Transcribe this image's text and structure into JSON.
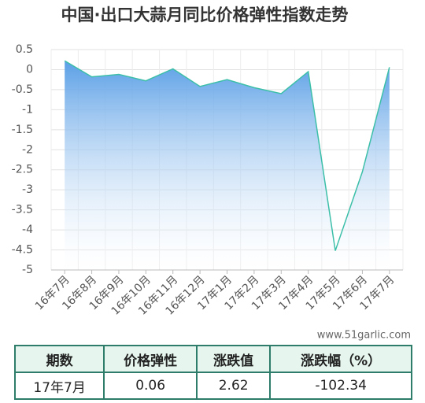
{
  "chart_data": {
    "type": "area",
    "title": "中国·出口大蒜月同比价格弹性指数走势",
    "categories": [
      "16年7月",
      "16年8月",
      "16年9月",
      "16年10月",
      "16年11月",
      "16年12月",
      "17年1月",
      "17年2月",
      "17年3月",
      "17年4月",
      "17年5月",
      "17年6月",
      "17年7月"
    ],
    "values": [
      0.22,
      -0.18,
      -0.12,
      -0.28,
      0.02,
      -0.42,
      -0.25,
      -0.45,
      -0.6,
      -0.05,
      -4.52,
      -2.55,
      0.06
    ],
    "color": "#3cbfa8",
    "fill_color": "#5a9fe6",
    "ylim": [
      -5,
      0.5
    ],
    "yticks": [
      0.5,
      0,
      -0.5,
      -1,
      -1.5,
      -2,
      -2.5,
      -3,
      -3.5,
      -4,
      -4.5,
      -5
    ],
    "grid": true,
    "watermark": "www.51garlic.com"
  },
  "table": {
    "header": [
      "期数",
      "价格弹性",
      "涨跌值",
      "涨跌幅（%）"
    ],
    "rows": [
      [
        "17年7月",
        "0.06",
        "2.62",
        "-102.34"
      ]
    ]
  }
}
